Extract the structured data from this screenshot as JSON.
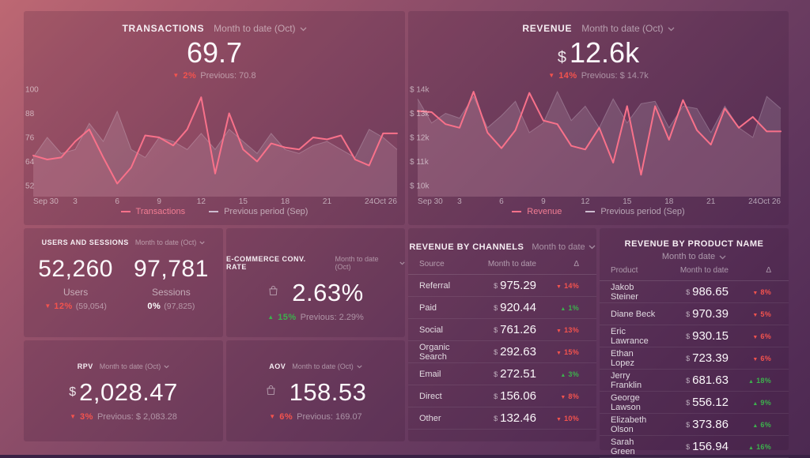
{
  "colors": {
    "accent": "#f8718a",
    "danger": "#f4534e",
    "success": "#3db14d",
    "prev_series": "#cdbccf",
    "background_top": "#bd6873",
    "background_bottom": "#4c2951"
  },
  "panels": {
    "transactions": {
      "title": "TRANSACTIONS",
      "range_label": "Month to date (Oct)",
      "value": "69.7",
      "delta_pct": "2%",
      "previous_label": "Previous: 70.8"
    },
    "revenue": {
      "title": "REVENUE",
      "range_label": "Month to date (Oct)",
      "currency": "$",
      "value": "12.6k",
      "delta_pct": "14%",
      "previous_label": "Previous: $ 14.7k"
    },
    "users_sessions": {
      "title": "USERS AND SESSIONS",
      "range_label": "Month to date (Oct)",
      "metrics": [
        {
          "value": "52,260",
          "label": "Users",
          "delta_dir": "down",
          "delta_pct": "12%",
          "prev": "(59,054)"
        },
        {
          "value": "97,781",
          "label": "Sessions",
          "delta_dir": "flat",
          "delta_pct": "0%",
          "prev": "(97,825)"
        }
      ]
    },
    "ecommerce_conv_rate": {
      "title": "E-COMMERCE CONV. RATE",
      "range_label": "Month to date (Oct)",
      "value": "2.63%",
      "delta_pct": "15%",
      "previous_label": "Previous: 2.29%"
    },
    "rpv": {
      "title": "RPV",
      "range_label": "Month to date (Oct)",
      "currency": "$",
      "value": "2,028.47",
      "delta_pct": "3%",
      "previous_label": "Previous: $ 2,083.28"
    },
    "aov": {
      "title": "AOV",
      "range_label": "Month to date (Oct)",
      "value": "158.53",
      "delta_pct": "6%",
      "previous_label": "Previous: 169.07"
    },
    "revenue_by_channels": {
      "title": "REVENUE BY CHANNELS",
      "range_label": "Month to date",
      "columns": [
        "Source",
        "Month to date",
        "Δ"
      ],
      "currency": "$",
      "rows": [
        {
          "label": "Referral",
          "value": "975.29",
          "dir": "down",
          "pct": "14%"
        },
        {
          "label": "Paid",
          "value": "920.44",
          "dir": "up",
          "pct": "1%"
        },
        {
          "label": "Social",
          "value": "761.26",
          "dir": "down",
          "pct": "13%"
        },
        {
          "label": "Organic Search",
          "value": "292.63",
          "dir": "down",
          "pct": "15%"
        },
        {
          "label": "Email",
          "value": "272.51",
          "dir": "up",
          "pct": "3%"
        },
        {
          "label": "Direct",
          "value": "156.06",
          "dir": "down",
          "pct": "8%"
        },
        {
          "label": "Other",
          "value": "132.46",
          "dir": "down",
          "pct": "10%"
        }
      ]
    },
    "revenue_by_product": {
      "title": "REVENUE BY PRODUCT NAME",
      "range_label": "Month to date",
      "columns": [
        "Product",
        "Month to date",
        "Δ"
      ],
      "currency": "$",
      "rows": [
        {
          "label": "Jakob Steiner",
          "value": "986.65",
          "dir": "down",
          "pct": "8%"
        },
        {
          "label": "Diane Beck",
          "value": "970.39",
          "dir": "down",
          "pct": "5%"
        },
        {
          "label": "Eric Lawrance",
          "value": "930.15",
          "dir": "down",
          "pct": "6%"
        },
        {
          "label": "Ethan Lopez",
          "value": "723.39",
          "dir": "down",
          "pct": "6%"
        },
        {
          "label": "Jerry Franklin",
          "value": "681.63",
          "dir": "up",
          "pct": "18%"
        },
        {
          "label": "George Lawson",
          "value": "556.12",
          "dir": "up",
          "pct": "9%"
        },
        {
          "label": "Elizabeth Olson",
          "value": "373.86",
          "dir": "up",
          "pct": "6%"
        },
        {
          "label": "Sarah Green",
          "value": "156.94",
          "dir": "up",
          "pct": "16%"
        }
      ]
    }
  },
  "chart_data": [
    {
      "type": "line",
      "title": "Transactions — Month to date (Oct) vs Previous period (Sep)",
      "ylim": [
        52,
        100
      ],
      "grid": false,
      "legend_position": "bottom",
      "yticks": [
        {
          "v": 100,
          "label": "100"
        },
        {
          "v": 88,
          "label": "88"
        },
        {
          "v": 76,
          "label": "76"
        },
        {
          "v": 64,
          "label": "64"
        },
        {
          "v": 52,
          "label": "52"
        }
      ],
      "xticks": [
        {
          "i": 0,
          "label": "Sep 30"
        },
        {
          "i": 3,
          "label": "3"
        },
        {
          "i": 6,
          "label": "6"
        },
        {
          "i": 9,
          "label": "9"
        },
        {
          "i": 12,
          "label": "12"
        },
        {
          "i": 15,
          "label": "15"
        },
        {
          "i": 18,
          "label": "18"
        },
        {
          "i": 21,
          "label": "21"
        },
        {
          "i": 24,
          "label": "24"
        },
        {
          "i": 26,
          "label": "Oct 26"
        }
      ],
      "series": [
        {
          "name": "Transactions",
          "color": "#f8718a",
          "fill": "rgba(248,113,138,0.07)",
          "values": [
            67,
            65,
            66,
            74,
            80,
            66,
            53,
            61,
            77,
            76,
            72,
            80,
            96,
            58,
            88,
            70,
            64,
            73,
            71,
            70,
            76,
            75,
            77,
            65,
            62,
            78,
            78
          ]
        },
        {
          "name": "Previous period (Sep)",
          "color": "#cdbccf",
          "fill": "rgba(223,210,226,0.16)",
          "values": [
            66,
            76,
            68,
            70,
            83,
            74,
            89,
            70,
            66,
            76,
            74,
            70,
            78,
            70,
            80,
            74,
            68,
            78,
            70,
            68,
            72,
            74,
            70,
            66,
            80,
            76,
            70
          ]
        }
      ]
    },
    {
      "type": "line",
      "title": "Revenue — Month to date (Oct) vs Previous period (Sep)",
      "ylim": [
        10000,
        14000
      ],
      "grid": false,
      "legend_position": "bottom",
      "yticks": [
        {
          "v": 14000,
          "label": "$ 14k"
        },
        {
          "v": 13000,
          "label": "$ 13k"
        },
        {
          "v": 12000,
          "label": "$ 12k"
        },
        {
          "v": 11000,
          "label": "$ 11k"
        },
        {
          "v": 10000,
          "label": "$ 10k"
        }
      ],
      "xticks": [
        {
          "i": 0,
          "label": "Sep 30"
        },
        {
          "i": 3,
          "label": "3"
        },
        {
          "i": 6,
          "label": "6"
        },
        {
          "i": 9,
          "label": "9"
        },
        {
          "i": 12,
          "label": "12"
        },
        {
          "i": 15,
          "label": "15"
        },
        {
          "i": 18,
          "label": "18"
        },
        {
          "i": 21,
          "label": "21"
        },
        {
          "i": 24,
          "label": "24"
        },
        {
          "i": 26,
          "label": "Oct 26"
        }
      ],
      "series": [
        {
          "name": "Revenue",
          "color": "#f8718a",
          "fill": "rgba(248,113,138,0.07)",
          "values": [
            13100,
            13050,
            12550,
            12400,
            13900,
            12200,
            11550,
            12300,
            13850,
            12700,
            12550,
            11650,
            11500,
            12400,
            10950,
            13300,
            10450,
            13300,
            11900,
            13550,
            12300,
            11700,
            13200,
            12400,
            12850,
            12250,
            12250
          ]
        },
        {
          "name": "Previous period (Sep)",
          "color": "#cdbccf",
          "fill": "rgba(223,210,226,0.16)",
          "values": [
            13600,
            12600,
            13000,
            12800,
            13700,
            12400,
            12900,
            13500,
            12200,
            12600,
            13900,
            12700,
            13300,
            12400,
            13600,
            12600,
            13400,
            13500,
            12400,
            13300,
            13200,
            12200,
            13300,
            12400,
            12000,
            13700,
            13200
          ]
        }
      ]
    }
  ]
}
